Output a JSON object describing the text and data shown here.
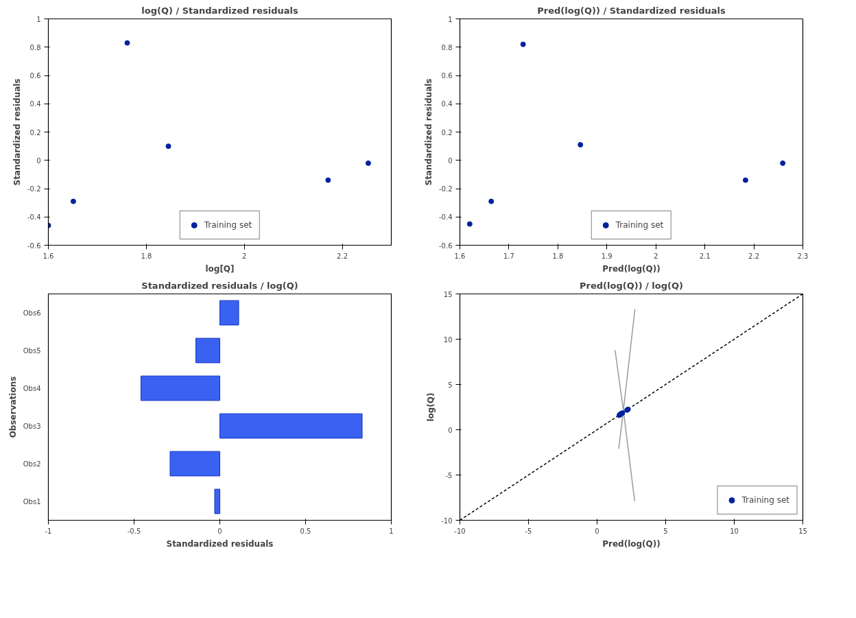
{
  "chart_data": [
    {
      "type": "scatter",
      "title": "log(Q) / Standardized residuals",
      "xlabel": "log[Q]",
      "ylabel": "Standardized residuals",
      "x": [
        1.6,
        1.651,
        1.761,
        1.845,
        2.171,
        2.253
      ],
      "series": [
        {
          "name": "Training set",
          "color": "#0022a0",
          "values": [
            -0.46,
            -0.29,
            0.83,
            0.1,
            -0.14,
            -0.02
          ]
        }
      ],
      "xlim": [
        1.6,
        2.3
      ],
      "xticks": [
        1.6,
        1.8,
        2,
        2.2
      ],
      "ylim": [
        -0.6,
        1
      ],
      "yticks": [
        -0.6,
        -0.4,
        -0.2,
        0,
        0.2,
        0.4,
        0.6,
        0.8,
        1
      ],
      "marker": "circle",
      "legend": "bottom"
    },
    {
      "type": "scatter",
      "title": "Pred(log(Q)) / Standardized residuals",
      "xlabel": "Pred(log(Q))",
      "ylabel": "Standardized residuals",
      "x": [
        1.62,
        1.664,
        1.729,
        1.846,
        2.183,
        2.259
      ],
      "series": [
        {
          "name": "Training set",
          "color": "#0022a0",
          "values": [
            -0.45,
            -0.29,
            0.82,
            0.11,
            -0.14,
            -0.02
          ]
        }
      ],
      "xlim": [
        1.6,
        2.3
      ],
      "xticks": [
        1.6,
        1.7,
        1.8,
        1.9,
        2,
        2.1,
        2.2,
        2.3
      ],
      "ylim": [
        -0.6,
        1
      ],
      "yticks": [
        -0.6,
        -0.4,
        -0.2,
        0,
        0.2,
        0.4,
        0.6,
        0.8,
        1
      ],
      "marker": "circle",
      "legend": "bottom"
    },
    {
      "type": "bar",
      "orientation": "horizontal",
      "title": "Standardized residuals / log(Q)",
      "xlabel": "Standardized residuals",
      "ylabel": "Observations",
      "categories": [
        "Obs6",
        "Obs5",
        "Obs4",
        "Obs3",
        "Obs2",
        "Obs1"
      ],
      "values": [
        0.11,
        -0.14,
        -0.46,
        0.83,
        -0.29,
        -0.03
      ],
      "color": "#3a62f2",
      "xlim": [
        -1,
        1
      ],
      "xticks": [
        -1,
        -0.5,
        0,
        0.5,
        1
      ]
    },
    {
      "type": "scatter",
      "title": "Pred(log(Q)) / log(Q)",
      "xlabel": "Pred(log(Q))",
      "ylabel": "log(Q)",
      "x": [
        1.62,
        1.664,
        1.729,
        1.846,
        2.183,
        2.259
      ],
      "series": [
        {
          "type": "line",
          "marker": "none",
          "color": "#000000",
          "line_style": "dashed",
          "x": [
            -10,
            15
          ],
          "values": [
            -10,
            15
          ]
        },
        {
          "type": "line",
          "marker": "none",
          "color": "#999999",
          "line_style": "solid",
          "x": [
            1.31,
            1.93,
            2.74
          ],
          "values": [
            8.8,
            2.0,
            -7.9
          ]
        },
        {
          "type": "line",
          "marker": "none",
          "color": "#999999",
          "line_style": "solid",
          "x": [
            1.58,
            1.93,
            2.76
          ],
          "values": [
            -2.1,
            2.3,
            13.3
          ]
        },
        {
          "name": "Training set",
          "color": "#0022a0",
          "values": [
            1.6,
            1.651,
            1.761,
            1.845,
            2.171,
            2.253
          ]
        }
      ],
      "xlim": [
        -10,
        15
      ],
      "xticks": [
        -10,
        -5,
        0,
        5,
        10,
        15
      ],
      "ylim": [
        -10,
        15
      ],
      "yticks": [
        -10,
        -5,
        0,
        5,
        10,
        15
      ],
      "marker": "circle",
      "legend": "bottom right"
    }
  ]
}
